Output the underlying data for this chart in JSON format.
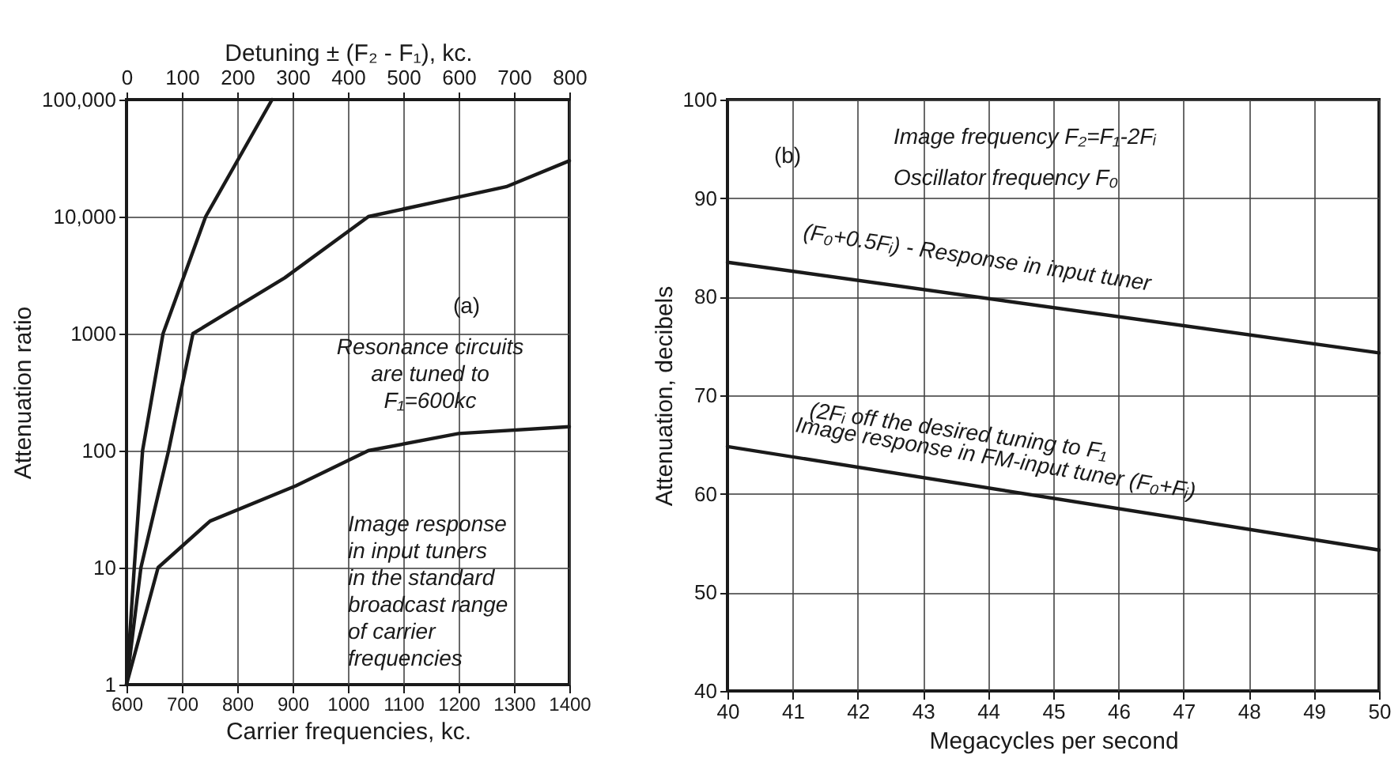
{
  "chart_data": [
    {
      "type": "line",
      "title": null,
      "xlabel": "Carrier frequencies, kc.",
      "ylabel": "Attenuation ratio",
      "x2label": "Detuning ± (F₂ - F₁), kc.",
      "xlim": [
        600,
        1400
      ],
      "xticks": [
        600,
        700,
        800,
        900,
        1000,
        1100,
        1200,
        1300,
        1400
      ],
      "x2lim": [
        0,
        800
      ],
      "x2ticks": [
        0,
        100,
        200,
        300,
        400,
        500,
        600,
        700,
        800
      ],
      "ylim": [
        1,
        100000
      ],
      "yticks": [
        1,
        10,
        100,
        1000,
        {
          "value": 10000,
          "label": "10,000"
        },
        {
          "value": 100000,
          "label": "100,000"
        }
      ],
      "log": "y",
      "grid": true,
      "series": [
        {
          "color": "#1a1a1a",
          "x": [
            600,
            614,
            629,
            666,
            743,
            863
          ],
          "values": [
            1,
            10,
            100,
            1000,
            10000,
            100000
          ]
        },
        {
          "color": "#1a1a1a",
          "x": [
            600,
            626,
            676,
            720,
            886,
            1037,
            1286,
            1400
          ],
          "values": [
            1,
            10,
            100,
            1000,
            3000,
            10000,
            18000,
            30000
          ]
        },
        {
          "color": "#1a1a1a",
          "x": [
            600,
            657,
            751,
            906,
            1037,
            1200,
            1400
          ],
          "values": [
            1,
            10,
            25,
            50,
            100,
            140,
            160
          ]
        }
      ],
      "annotations": [
        "(a)",
        "Resonance circuits are tuned to F₁=600kc",
        "Image response in input tuners in the standard broadcast range of carrier frequencies"
      ]
    },
    {
      "type": "line",
      "title": null,
      "xlabel": "Megacycles per second",
      "ylabel": "Attenuation, decibels",
      "xlim": [
        40,
        50
      ],
      "xticks": [
        40,
        41,
        42,
        43,
        44,
        45,
        46,
        47,
        48,
        49,
        50
      ],
      "ylim": [
        40,
        100
      ],
      "yticks": [
        40,
        50,
        60,
        70,
        80,
        90,
        100
      ],
      "grid": true,
      "series": [
        {
          "name": "(F₀+0.5Fᵢ) - Response in input tuner",
          "color": "#1a1a1a",
          "x": [
            40,
            50
          ],
          "values": [
            83.5,
            74.3
          ]
        },
        {
          "name": "Image response in FM-input tuner (F₀+Fᵢ)",
          "color": "#1a1a1a",
          "x": [
            40,
            50
          ],
          "values": [
            64.8,
            54.3
          ]
        }
      ],
      "annotations": [
        "(b)",
        "Image frequency F₂=F₁-2Fᵢ",
        "Oscillator frequency F₀",
        "(2Fᵢ off the desired tuning to F₁"
      ]
    }
  ]
}
